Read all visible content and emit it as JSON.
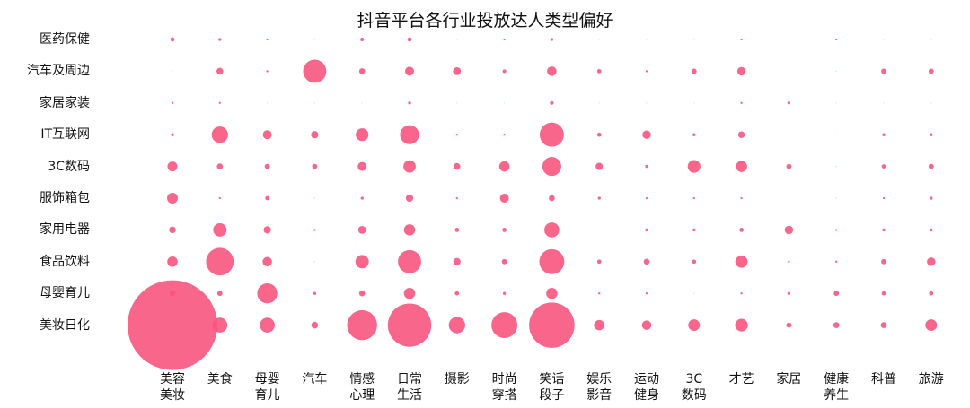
{
  "chart_data": {
    "type": "scatter",
    "title": "抖音平台各行业投放达人类型偏好",
    "categories": [
      "美容\n美妆",
      "美食",
      "母婴\n育儿",
      "汽车",
      "情感\n心理",
      "日常\n生活",
      "摄影",
      "时尚\n穿搭",
      "笑话\n段子",
      "娱乐\n影音",
      "运动\n健身",
      "3C\n数码",
      "才艺",
      "家居",
      "健康\n养生",
      "科普",
      "旅游"
    ],
    "rows": [
      "医药保健",
      "汽车及周边",
      "家居家装",
      "IT互联网",
      "3C数码",
      "服饰箱包",
      "家用电器",
      "食品饮料",
      "母婴育儿",
      "美妆日化"
    ],
    "bubble_color": "#f7557f",
    "values": [
      [
        2,
        1,
        0.5,
        0,
        1.5,
        2,
        0,
        0.5,
        1,
        0,
        0,
        0,
        0.5,
        0,
        0.5,
        0,
        0
      ],
      [
        0,
        5,
        0.5,
        60,
        4,
        9,
        7,
        1.5,
        10,
        2,
        0.5,
        3,
        8,
        0,
        0,
        3,
        3
      ],
      [
        0.5,
        0.5,
        0,
        0,
        0,
        1,
        0,
        0,
        1.5,
        0,
        0,
        0,
        0.5,
        1,
        0,
        0,
        0
      ],
      [
        1,
        30,
        9,
        6,
        18,
        40,
        0.5,
        0.5,
        65,
        2,
        8,
        1,
        5,
        0,
        0,
        1,
        1
      ],
      [
        11,
        4,
        3,
        3,
        9,
        17,
        5,
        12,
        40,
        6,
        1,
        18,
        14,
        3,
        0,
        2,
        3
      ],
      [
        13,
        0.5,
        2,
        0,
        1,
        6,
        0.5,
        9,
        4,
        1,
        0.5,
        0.5,
        0.5,
        0,
        0,
        0.5,
        1
      ],
      [
        5,
        20,
        6,
        0.5,
        7,
        14,
        2,
        2,
        25,
        0,
        1,
        1,
        2,
        8,
        0.5,
        1,
        1
      ],
      [
        12,
        85,
        10,
        0,
        20,
        60,
        6,
        3,
        70,
        2,
        4,
        2,
        17,
        0.5,
        0.5,
        3,
        8
      ],
      [
        4,
        3,
        45,
        1,
        4,
        14,
        2,
        1,
        14,
        0.5,
        0.5,
        0,
        0.5,
        1,
        3,
        2,
        2
      ],
      [
        900,
        25,
        25,
        5,
        100,
        210,
        30,
        75,
        230,
        12,
        10,
        15,
        18,
        3,
        4,
        4,
        15
      ]
    ]
  }
}
